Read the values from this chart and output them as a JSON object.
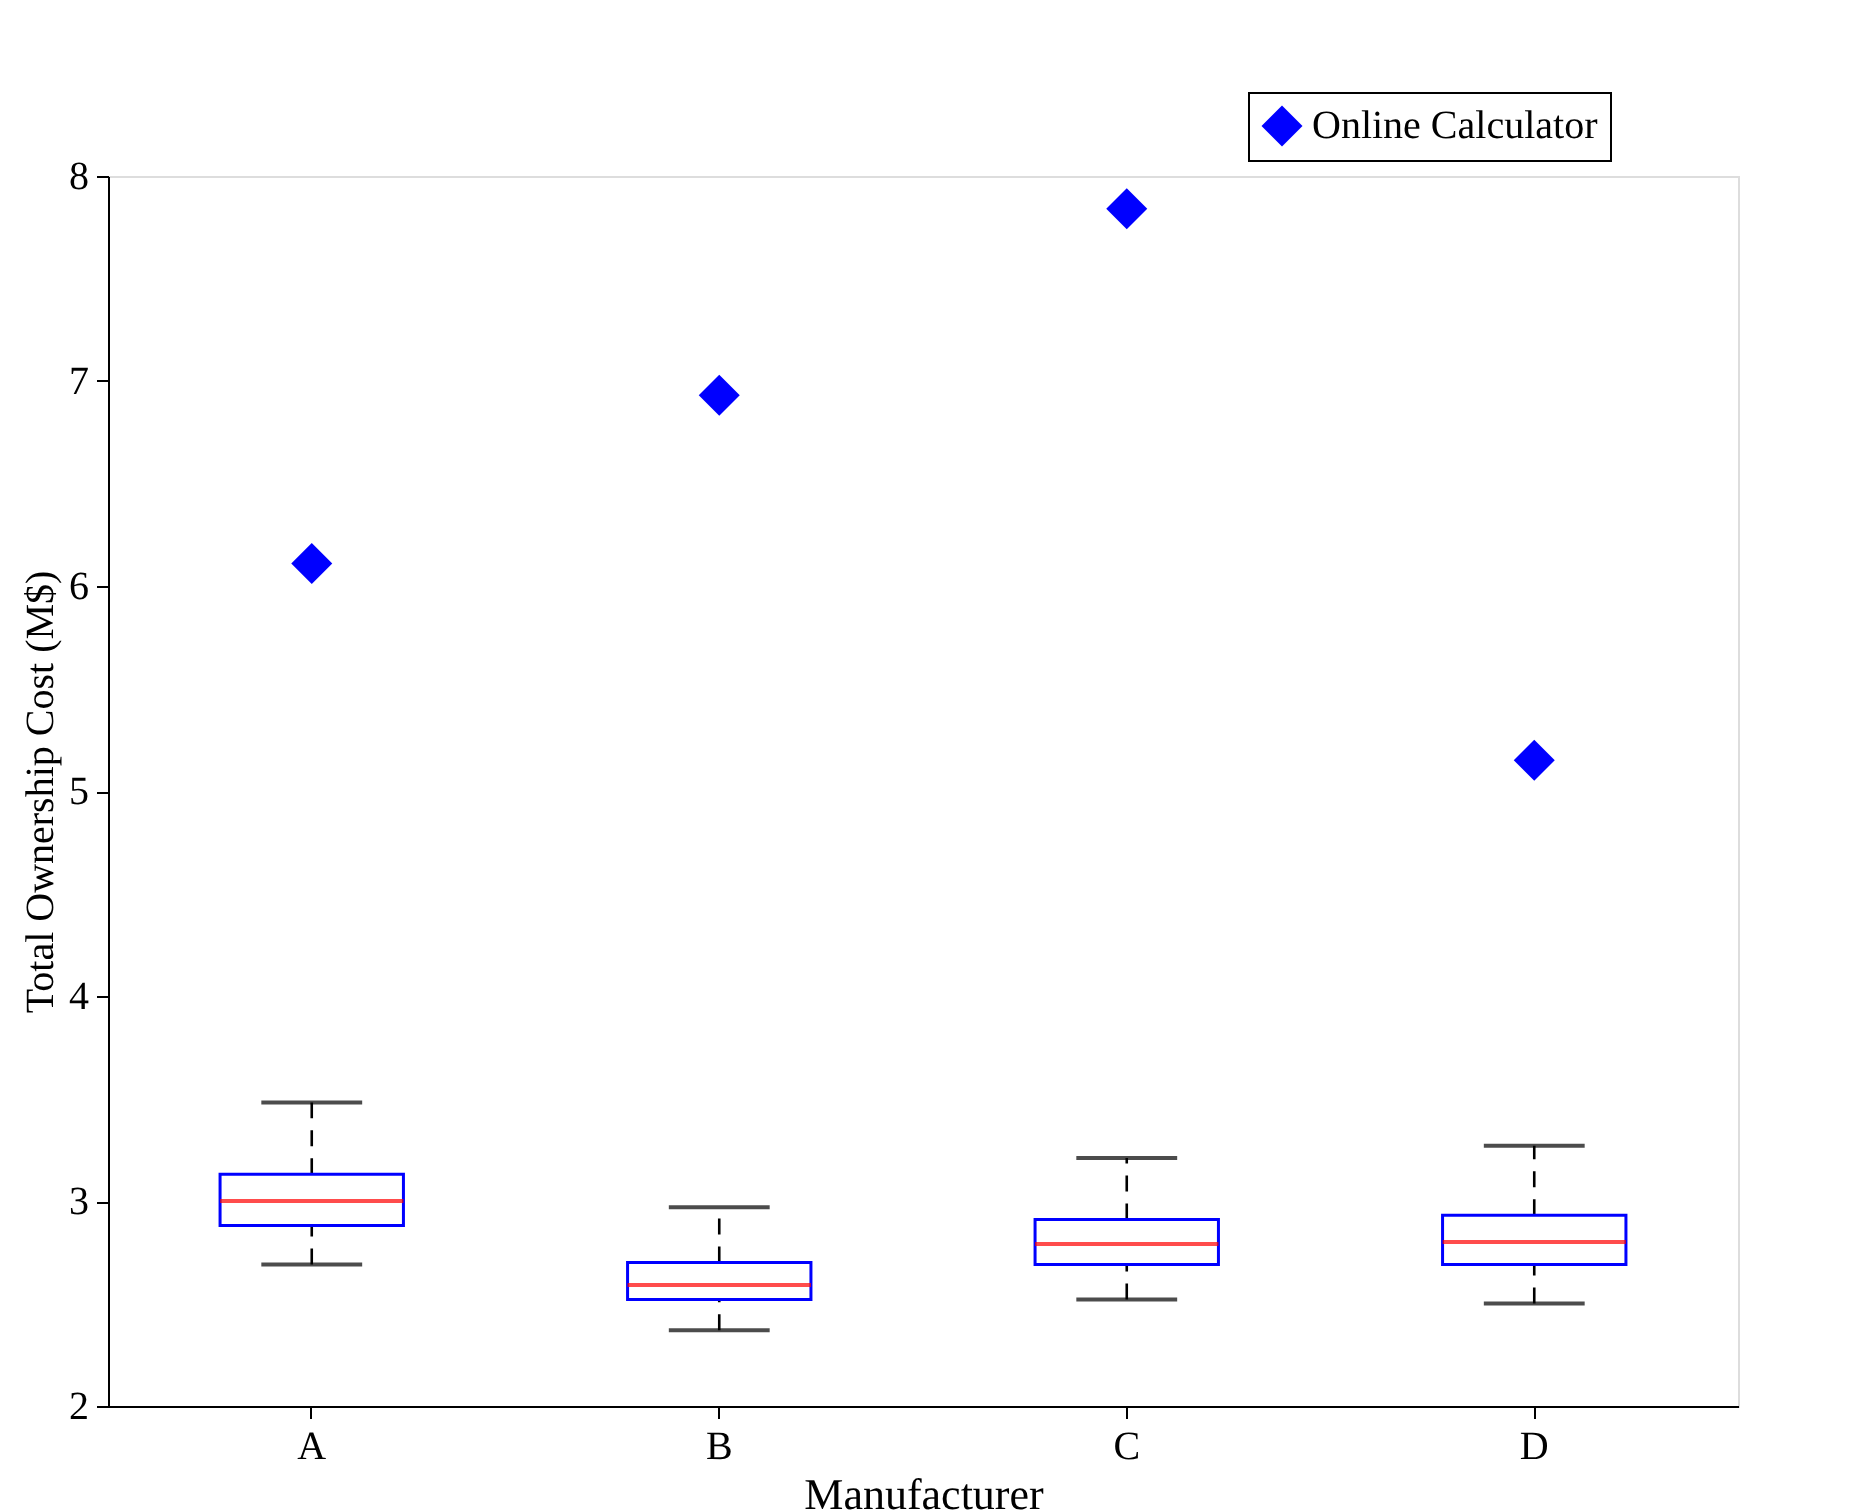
{
  "chart_data": {
    "type": "box",
    "xlabel": "Manufacturer",
    "ylabel": "Total Ownership Cost (M$)",
    "categories": [
      "A",
      "B",
      "C",
      "D"
    ],
    "boxes": [
      {
        "low": 2.69,
        "q1": 2.88,
        "median": 3.0,
        "q3": 3.13,
        "high": 3.48
      },
      {
        "low": 2.37,
        "q1": 2.52,
        "median": 2.59,
        "q3": 2.7,
        "high": 2.97
      },
      {
        "low": 2.52,
        "q1": 2.69,
        "median": 2.79,
        "q3": 2.91,
        "high": 3.21
      },
      {
        "low": 2.5,
        "q1": 2.69,
        "median": 2.8,
        "q3": 2.93,
        "high": 3.27
      }
    ],
    "series": [
      {
        "name": "Online Calculator",
        "type": "scatter",
        "color": "#0000ff",
        "marker": "diamond",
        "x": [
          "A",
          "B",
          "C",
          "D"
        ],
        "values": [
          6.11,
          6.93,
          7.84,
          5.15
        ]
      }
    ],
    "ylim": [
      2,
      8
    ],
    "yticks": [
      2,
      3,
      4,
      5,
      6,
      7,
      8
    ],
    "grid": false,
    "legend": "top right"
  }
}
